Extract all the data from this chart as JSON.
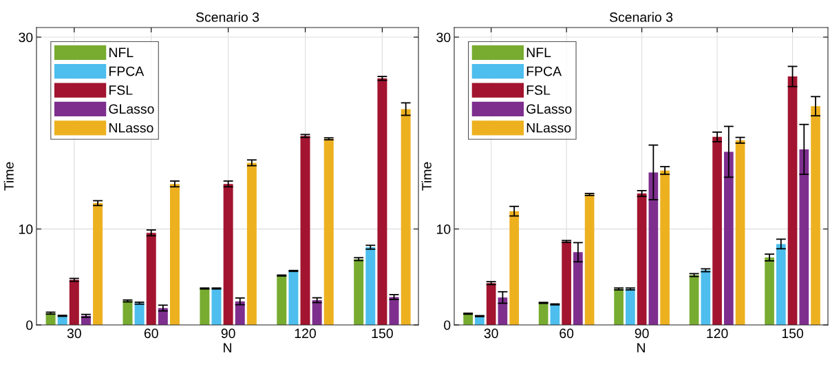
{
  "chart_data": [
    {
      "type": "bar",
      "title": "Scenario 3",
      "xlabel": "N",
      "ylabel": "Time",
      "categories": [
        "30",
        "60",
        "90",
        "120",
        "150"
      ],
      "ylim": [
        0,
        31
      ],
      "yticks": [
        0,
        10,
        30
      ],
      "grid": true,
      "legend": "top left",
      "series": [
        {
          "name": "NFL",
          "color": "#77ac30",
          "values": [
            1.23,
            2.5,
            3.8,
            5.15,
            6.86
          ],
          "errors": [
            0.1,
            0.1,
            0.05,
            0.05,
            0.15
          ]
        },
        {
          "name": "FPCA",
          "color": "#4dbeee",
          "values": [
            0.95,
            2.27,
            3.8,
            5.63,
            8.1
          ],
          "errors": [
            0.05,
            0.1,
            0.05,
            0.05,
            0.2
          ]
        },
        {
          "name": "FSL",
          "color": "#a2142f",
          "values": [
            4.7,
            9.6,
            14.7,
            19.7,
            25.7
          ],
          "errors": [
            0.15,
            0.3,
            0.3,
            0.15,
            0.2
          ]
        },
        {
          "name": "GLasso",
          "color": "#7e2f8e",
          "values": [
            0.95,
            1.76,
            2.46,
            2.58,
            2.91
          ],
          "errors": [
            0.15,
            0.3,
            0.35,
            0.25,
            0.25
          ]
        },
        {
          "name": "NLasso",
          "color": "#edb120",
          "values": [
            12.7,
            14.7,
            16.9,
            19.4,
            22.5
          ],
          "errors": [
            0.25,
            0.3,
            0.3,
            0.1,
            0.65
          ]
        }
      ]
    },
    {
      "type": "bar",
      "title": "Scenario 3",
      "xlabel": "N",
      "ylabel": "Time",
      "categories": [
        "30",
        "60",
        "90",
        "120",
        "150"
      ],
      "ylim": [
        0,
        31
      ],
      "yticks": [
        0,
        10,
        30
      ],
      "grid": true,
      "legend": "top left",
      "series": [
        {
          "name": "NFL",
          "color": "#77ac30",
          "values": [
            1.17,
            2.3,
            3.75,
            5.2,
            7.03
          ],
          "errors": [
            0.05,
            0.05,
            0.1,
            0.15,
            0.35
          ]
        },
        {
          "name": "FPCA",
          "color": "#4dbeee",
          "values": [
            0.92,
            2.14,
            3.75,
            5.7,
            8.44
          ],
          "errors": [
            0.05,
            0.05,
            0.1,
            0.15,
            0.5
          ]
        },
        {
          "name": "FSL",
          "color": "#a2142f",
          "values": [
            4.36,
            8.7,
            13.7,
            19.6,
            25.9
          ],
          "errors": [
            0.15,
            0.1,
            0.3,
            0.5,
            1.05
          ]
        },
        {
          "name": "GLasso",
          "color": "#7e2f8e",
          "values": [
            2.86,
            7.58,
            15.9,
            18.05,
            18.3
          ],
          "errors": [
            0.6,
            1.0,
            2.85,
            2.65,
            2.6
          ]
        },
        {
          "name": "NLasso",
          "color": "#edb120",
          "values": [
            11.86,
            13.6,
            16.1,
            19.25,
            22.8
          ],
          "errors": [
            0.5,
            0.1,
            0.4,
            0.3,
            1.0
          ]
        }
      ]
    }
  ]
}
